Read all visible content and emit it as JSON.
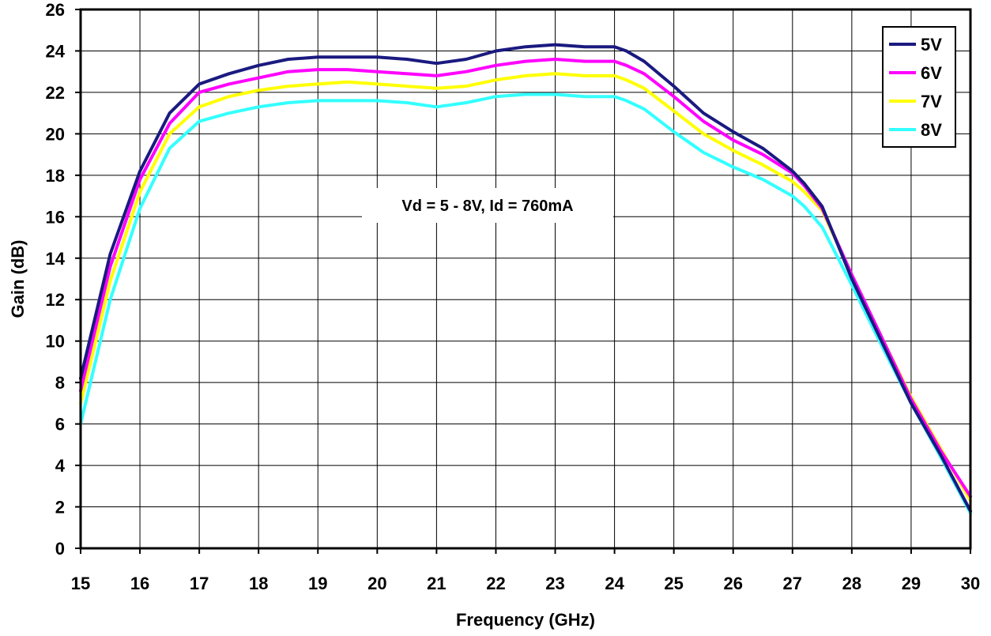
{
  "chart_data": {
    "type": "line",
    "title": "",
    "xlabel": "Frequency (GHz)",
    "ylabel": "Gain (dB)",
    "xlim": [
      15,
      30
    ],
    "ylim": [
      0,
      26
    ],
    "xticks": [
      15,
      16,
      17,
      18,
      19,
      20,
      21,
      22,
      23,
      24,
      25,
      26,
      27,
      28,
      29,
      30
    ],
    "yticks": [
      0,
      2,
      4,
      6,
      8,
      10,
      12,
      14,
      16,
      18,
      20,
      22,
      24,
      26
    ],
    "grid": true,
    "legend_position": "top-right",
    "annotation": "Vd = 5 - 8V, Id = 760mA",
    "x": [
      15,
      15.5,
      16,
      16.5,
      17,
      17.5,
      18,
      18.5,
      19,
      19.5,
      20,
      20.5,
      21,
      21.5,
      22,
      22.5,
      23,
      23.5,
      24,
      24.2,
      24.5,
      25,
      25.5,
      26,
      26.5,
      27,
      27.2,
      27.5,
      28,
      28.5,
      29,
      29.5,
      30
    ],
    "series": [
      {
        "name": "5V",
        "color": "#1a1a80",
        "values": [
          8.2,
          14.2,
          18.2,
          21.0,
          22.4,
          22.9,
          23.3,
          23.6,
          23.7,
          23.7,
          23.7,
          23.6,
          23.4,
          23.6,
          24.0,
          24.2,
          24.3,
          24.2,
          24.2,
          24.0,
          23.5,
          22.3,
          21.0,
          20.1,
          19.3,
          18.2,
          17.6,
          16.5,
          13.0,
          10.0,
          7.0,
          4.5,
          1.8
        ]
      },
      {
        "name": "6V",
        "color": "#ff00ff",
        "values": [
          7.6,
          13.6,
          17.8,
          20.5,
          22.0,
          22.4,
          22.7,
          23.0,
          23.1,
          23.1,
          23.0,
          22.9,
          22.8,
          23.0,
          23.3,
          23.5,
          23.6,
          23.5,
          23.5,
          23.3,
          22.9,
          21.8,
          20.6,
          19.7,
          19.0,
          18.1,
          17.5,
          16.4,
          13.2,
          10.2,
          7.2,
          4.7,
          2.5
        ]
      },
      {
        "name": "7V",
        "color": "#ffff00",
        "values": [
          7.0,
          12.9,
          17.2,
          20.0,
          21.3,
          21.8,
          22.1,
          22.3,
          22.4,
          22.5,
          22.4,
          22.3,
          22.2,
          22.3,
          22.6,
          22.8,
          22.9,
          22.8,
          22.8,
          22.6,
          22.2,
          21.1,
          20.0,
          19.2,
          18.5,
          17.7,
          17.2,
          16.3,
          13.2,
          10.2,
          7.3,
          4.8,
          2.3
        ]
      },
      {
        "name": "8V",
        "color": "#33ffff",
        "values": [
          6.0,
          12.0,
          16.4,
          19.3,
          20.6,
          21.0,
          21.3,
          21.5,
          21.6,
          21.6,
          21.6,
          21.5,
          21.3,
          21.5,
          21.8,
          21.9,
          21.9,
          21.8,
          21.8,
          21.6,
          21.2,
          20.1,
          19.1,
          18.4,
          17.8,
          17.0,
          16.5,
          15.5,
          12.7,
          9.8,
          7.0,
          4.4,
          1.7
        ]
      }
    ]
  }
}
